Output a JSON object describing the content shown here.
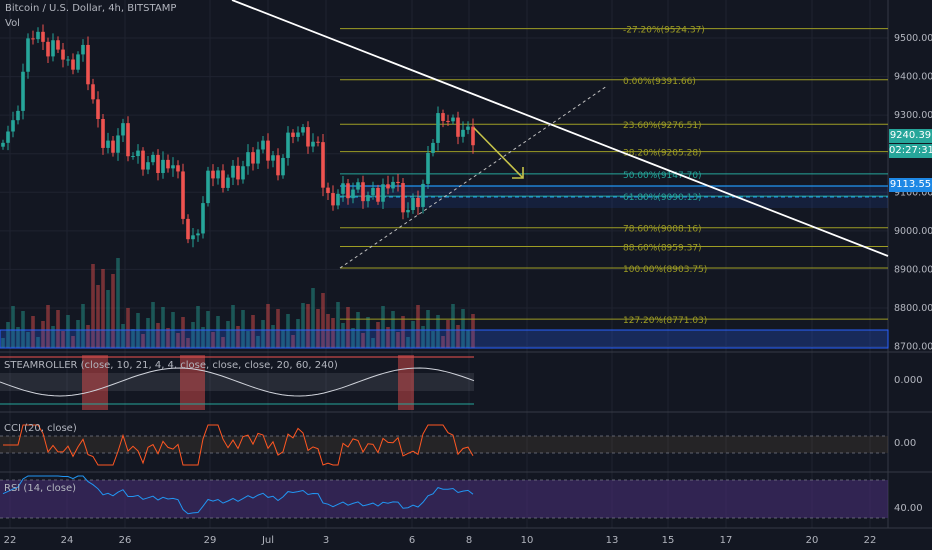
{
  "header": {
    "title": "Bitcoin / U.S. Dollar, 4h, BITSTAMP",
    "volume_label": "Vol"
  },
  "price_axis": {
    "ticks": [
      "9500.00",
      "9400.00",
      "9300.00",
      "9200.00",
      "9100.00",
      "9000.00",
      "8900.00",
      "8800.00",
      "8700.00"
    ],
    "ticks_values": [
      9500,
      9400,
      9300,
      9200,
      9100,
      9000,
      8900,
      8800,
      8700
    ],
    "current_price": "9240.39",
    "countdown": "02:27:31",
    "level_tag": "9113.55",
    "current_price_color": "#26a69a",
    "level_tag_color": "#1e88e5"
  },
  "fib_levels": [
    {
      "label": "-27.20%(9524.37)",
      "value": 9524.37,
      "color": "#9e9d24"
    },
    {
      "label": "0.00%(9391.66)",
      "value": 9391.66,
      "color": "#9e9d24"
    },
    {
      "label": "23.60%(9276.51)",
      "value": 9276.51,
      "color": "#9e9d24"
    },
    {
      "label": "38.20%(9205.28)",
      "value": 9205.28,
      "color": "#9e9d24"
    },
    {
      "label": "50.00%(9147.70)",
      "value": 9147.7,
      "color": "#26a69a"
    },
    {
      "label": "61.80%(9090.13)",
      "value": 9090.13,
      "color": "#26a69a"
    },
    {
      "label": "78.60%(9008.16)",
      "value": 9008.16,
      "color": "#9e9d24"
    },
    {
      "label": "88.60%(8959.37)",
      "value": 8959.37,
      "color": "#9e9d24"
    },
    {
      "label": "100.00%(8903.75)",
      "value": 8903.75,
      "color": "#9e9d24"
    },
    {
      "label": "127.20%(8771.03)",
      "value": 8771.03,
      "color": "#9e9d24"
    }
  ],
  "indicators": {
    "steamroller": {
      "label": "STEAMROLLER (close, 10, 21, 4, 4, close, close, close, 20, 60, 240)",
      "value": "0.000"
    },
    "cci": {
      "label": "CCI (20, close)",
      "value": "0.00"
    },
    "rsi": {
      "label": "RSI (14, close)",
      "value": "40.00"
    }
  },
  "time_axis": {
    "labels": [
      "22",
      "24",
      "26",
      "29",
      "Jul",
      "3",
      "6",
      "8",
      "10",
      "13",
      "15",
      "17",
      "20",
      "22"
    ]
  },
  "colors": {
    "background": "#131722",
    "up": "#26a69a",
    "down": "#ef5350",
    "trendline": "#ffffff",
    "arrow": "#c6c34a",
    "cci": "#ff5722",
    "rsi": "#2196f3",
    "rsi_band": "#4a2f7a"
  }
}
